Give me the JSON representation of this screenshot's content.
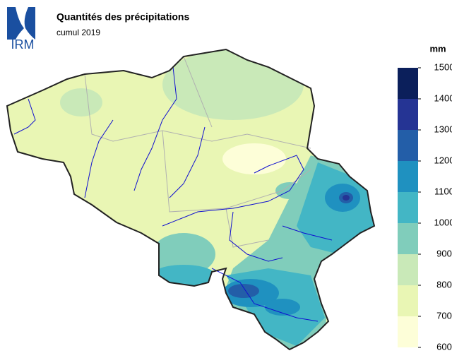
{
  "logo": {
    "text": "IRM"
  },
  "header": {
    "title": "Quantités des précipitations",
    "subtitle": "cumul 2019"
  },
  "legend": {
    "unit": "mm",
    "bins": [
      600,
      700,
      800,
      900,
      1000,
      1100,
      1200,
      1300,
      1400,
      1500
    ],
    "colors": [
      "#fdfed8",
      "#e9f6b4",
      "#c9e9b8",
      "#80cdbb",
      "#43b6c5",
      "#1f91c0",
      "#235ea8",
      "#253494",
      "#0b1f5b"
    ]
  }
}
